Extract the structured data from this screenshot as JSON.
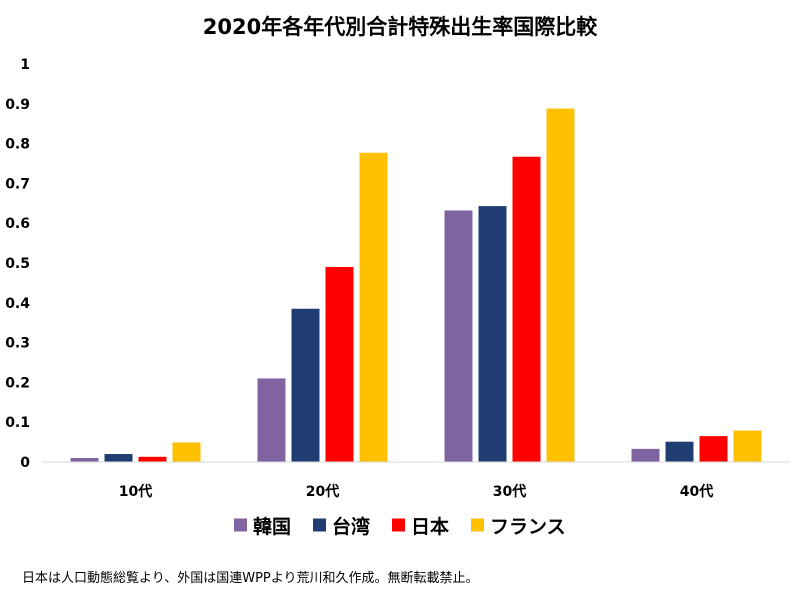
{
  "chart_data": {
    "type": "bar",
    "title": "2020年各年代別合計特殊出生率国際比較",
    "categories": [
      "10代",
      "20代",
      "30代",
      "40代"
    ],
    "series": [
      {
        "name": "韓国",
        "color": "#8064A2",
        "values": [
          0.01,
          0.21,
          0.632,
          0.033
        ]
      },
      {
        "name": "台湾",
        "color": "#1F3D73",
        "values": [
          0.02,
          0.385,
          0.643,
          0.051
        ]
      },
      {
        "name": "日本",
        "color": "#FF0000",
        "values": [
          0.013,
          0.49,
          0.767,
          0.065
        ]
      },
      {
        "name": "フランス",
        "color": "#FFC000",
        "values": [
          0.049,
          0.777,
          0.888,
          0.079
        ]
      }
    ],
    "ylim": [
      0,
      1
    ],
    "yticks": [
      "0",
      "0.1",
      "0.2",
      "0.3",
      "0.4",
      "0.5",
      "0.6",
      "0.7",
      "0.8",
      "0.9",
      "1"
    ],
    "grid": false,
    "legend_position": "bottom"
  },
  "footnote": "日本は人口動態総覧より、外国は国連WPPより荒川和久作成。無断転載禁止。"
}
